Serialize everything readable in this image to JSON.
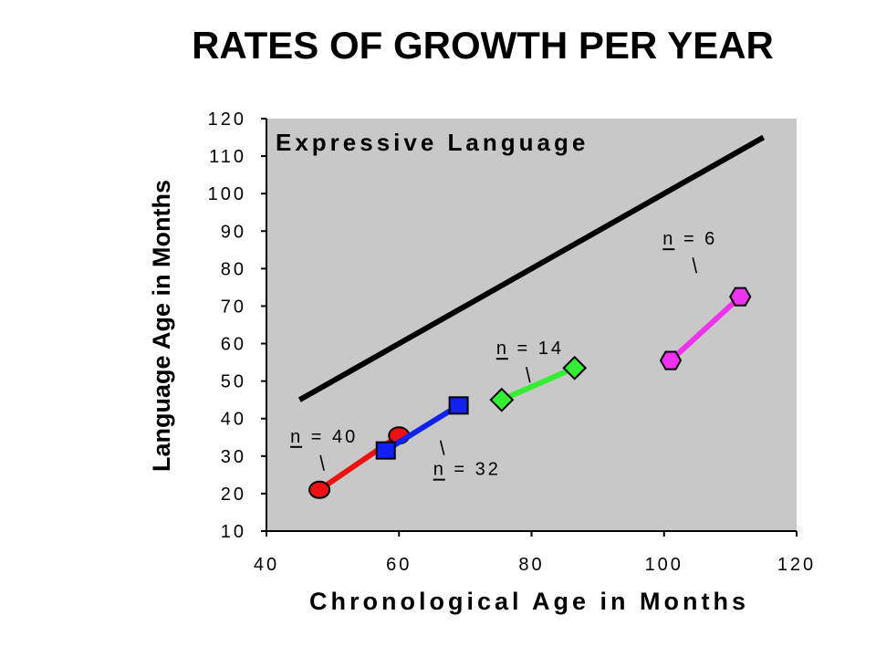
{
  "chart_data": {
    "type": "line",
    "title": "RATES OF GROWTH PER YEAR",
    "subtitle": "Expressive Language",
    "xlabel": "Chronological Age in Months",
    "ylabel": "Language Age in Months",
    "xlim": [
      40,
      120
    ],
    "ylim": [
      10,
      120
    ],
    "xticks": [
      40,
      60,
      80,
      100,
      120
    ],
    "yticks": [
      10,
      20,
      30,
      40,
      50,
      60,
      70,
      80,
      90,
      100,
      110,
      120
    ],
    "grid": false,
    "background": "#c8c8c8",
    "reference_line": {
      "x": [
        45,
        115
      ],
      "y": [
        45,
        115
      ],
      "color": "#000000"
    },
    "series": [
      {
        "marker": "circle",
        "color": "#ee1111",
        "line_color": "#ee1111",
        "x": [
          48,
          60
        ],
        "y": [
          21,
          35.5
        ],
        "annotation": {
          "text": "n = 40",
          "underline": "n",
          "point_index": 0
        }
      },
      {
        "marker": "square",
        "color": "#1122ee",
        "line_color": "#1122ee",
        "x": [
          58,
          69
        ],
        "y": [
          31.5,
          43.5
        ],
        "annotation": {
          "text": "n = 32",
          "underline": "n",
          "point_index": 0
        }
      },
      {
        "marker": "diamond",
        "color": "#33ee33",
        "line_color": "#33ee33",
        "x": [
          75.5,
          86.5
        ],
        "y": [
          45,
          53.5
        ],
        "annotation": {
          "text": "n = 14",
          "underline": "n",
          "point_index": 0
        }
      },
      {
        "marker": "hexagon",
        "color": "#ee33ee",
        "line_color": "#ee33ee",
        "x": [
          101,
          111.5
        ],
        "y": [
          55.5,
          72.5
        ],
        "annotation": {
          "text": "n = 6",
          "underline": "n",
          "point_index": 1
        }
      }
    ]
  }
}
